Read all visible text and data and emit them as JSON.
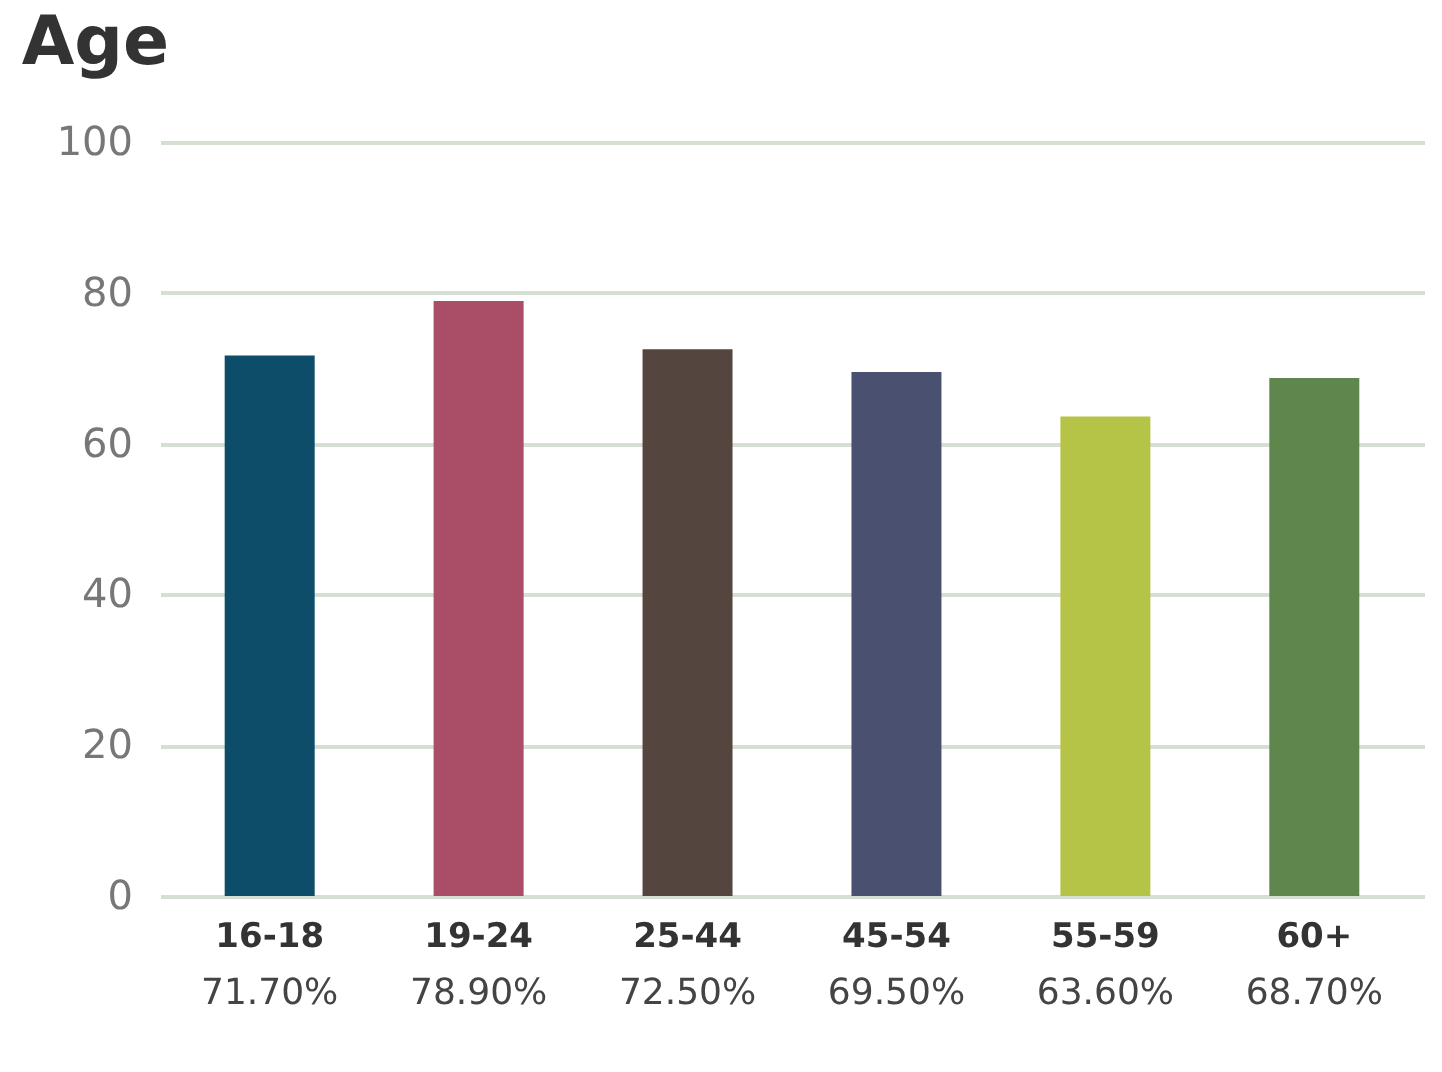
{
  "chart_data": {
    "type": "bar",
    "title": "Age",
    "categories": [
      "16-18",
      "19-24",
      "25-44",
      "45-54",
      "55-59",
      "60+"
    ],
    "values": [
      71.7,
      78.9,
      72.5,
      69.5,
      63.6,
      68.7
    ],
    "value_labels": [
      "71.70%",
      "78.90%",
      "72.50%",
      "69.50%",
      "63.60%",
      "68.70%"
    ],
    "colors": [
      "#0e4d6a",
      "#a94e66",
      "#54463f",
      "#4a5070",
      "#b5c447",
      "#5f864d"
    ],
    "ylim": [
      0,
      100
    ],
    "yticks": [
      0,
      20,
      40,
      60,
      80,
      100
    ],
    "grid": "y"
  }
}
